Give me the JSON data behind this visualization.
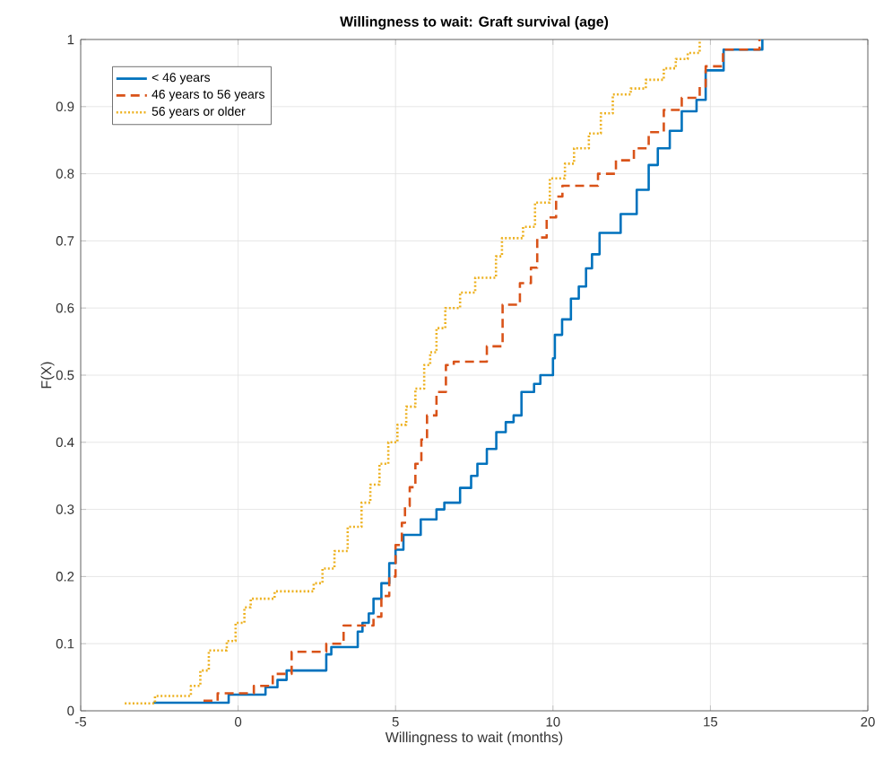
{
  "chart_data": {
    "type": "step",
    "title": "Willingness to wait: Graft survival (age)",
    "xlabel": "Willingness to wait (months)",
    "ylabel": "F(X)",
    "xlim": [
      -5,
      20
    ],
    "ylim": [
      0,
      1
    ],
    "xticks": [
      -5,
      0,
      5,
      10,
      15,
      20
    ],
    "yticks": [
      0,
      0.1,
      0.2,
      0.3,
      0.4,
      0.5,
      0.6,
      0.7,
      0.8,
      0.9,
      1
    ],
    "grid": true,
    "legend": "top left",
    "series": [
      {
        "name": "< 46 years",
        "color": "#0072bd",
        "line_style": "solid",
        "x": [
          -2.7,
          -0.3,
          0.87,
          1.25,
          1.54,
          2.8,
          2.96,
          3.8,
          3.95,
          4.15,
          4.3,
          4.55,
          4.8,
          5.0,
          5.25,
          5.8,
          6.3,
          6.55,
          7.05,
          7.4,
          7.6,
          7.9,
          8.2,
          8.5,
          8.75,
          9.0,
          9.4,
          9.6,
          10.0,
          10.06,
          10.29,
          10.57,
          10.82,
          11.05,
          11.24,
          11.48,
          12.15,
          12.66,
          13.04,
          13.33,
          13.71,
          14.09,
          14.56,
          14.85,
          15.42,
          16.65
        ],
        "values": [
          0.012,
          0.024,
          0.035,
          0.046,
          0.06,
          0.084,
          0.095,
          0.118,
          0.131,
          0.145,
          0.167,
          0.19,
          0.22,
          0.24,
          0.262,
          0.285,
          0.3,
          0.31,
          0.332,
          0.35,
          0.368,
          0.39,
          0.415,
          0.43,
          0.44,
          0.475,
          0.487,
          0.5,
          0.525,
          0.56,
          0.583,
          0.614,
          0.632,
          0.659,
          0.68,
          0.712,
          0.74,
          0.776,
          0.813,
          0.838,
          0.864,
          0.893,
          0.91,
          0.954,
          0.985,
          1.0
        ]
      },
      {
        "name": "46 years to 56 years",
        "color": "#d95319",
        "line_style": "dashed",
        "x": [
          -1.1,
          -0.65,
          0.5,
          1.1,
          1.7,
          2.8,
          3.35,
          4.3,
          4.55,
          4.8,
          5.0,
          5.2,
          5.3,
          5.45,
          5.63,
          5.82,
          6.0,
          6.3,
          6.6,
          6.85,
          7.9,
          8.4,
          8.95,
          9.3,
          9.5,
          9.8,
          10.1,
          10.3,
          11.43,
          12.0,
          12.57,
          13.04,
          13.52,
          14.09,
          14.66,
          14.85,
          15.4,
          16.56
        ],
        "values": [
          0.015,
          0.026,
          0.037,
          0.055,
          0.088,
          0.1,
          0.127,
          0.14,
          0.171,
          0.2,
          0.247,
          0.28,
          0.305,
          0.333,
          0.368,
          0.404,
          0.44,
          0.475,
          0.515,
          0.52,
          0.543,
          0.605,
          0.637,
          0.66,
          0.705,
          0.735,
          0.766,
          0.782,
          0.8,
          0.82,
          0.838,
          0.862,
          0.895,
          0.913,
          0.93,
          0.96,
          0.985,
          1.0
        ]
      },
      {
        "name": "56 years or older",
        "color": "#edb120",
        "line_style": "dotted",
        "x": [
          -3.6,
          -2.64,
          -1.5,
          -1.2,
          -0.93,
          -0.36,
          -0.08,
          0.2,
          0.4,
          1.16,
          2.4,
          2.68,
          3.06,
          3.48,
          3.92,
          4.2,
          4.49,
          4.77,
          5.06,
          5.34,
          5.63,
          5.91,
          6.1,
          6.3,
          6.58,
          7.05,
          7.53,
          8.19,
          8.38,
          9.05,
          9.43,
          9.9,
          10.38,
          10.67,
          11.14,
          11.52,
          11.9,
          12.47,
          12.95,
          13.52,
          13.9,
          14.28,
          14.66
        ],
        "values": [
          0.011,
          0.022,
          0.037,
          0.06,
          0.09,
          0.104,
          0.131,
          0.154,
          0.167,
          0.178,
          0.19,
          0.212,
          0.238,
          0.274,
          0.31,
          0.337,
          0.368,
          0.4,
          0.426,
          0.453,
          0.48,
          0.515,
          0.534,
          0.57,
          0.6,
          0.623,
          0.645,
          0.677,
          0.704,
          0.721,
          0.757,
          0.793,
          0.815,
          0.838,
          0.86,
          0.89,
          0.918,
          0.927,
          0.94,
          0.957,
          0.971,
          0.98,
          1.0
        ]
      }
    ]
  }
}
